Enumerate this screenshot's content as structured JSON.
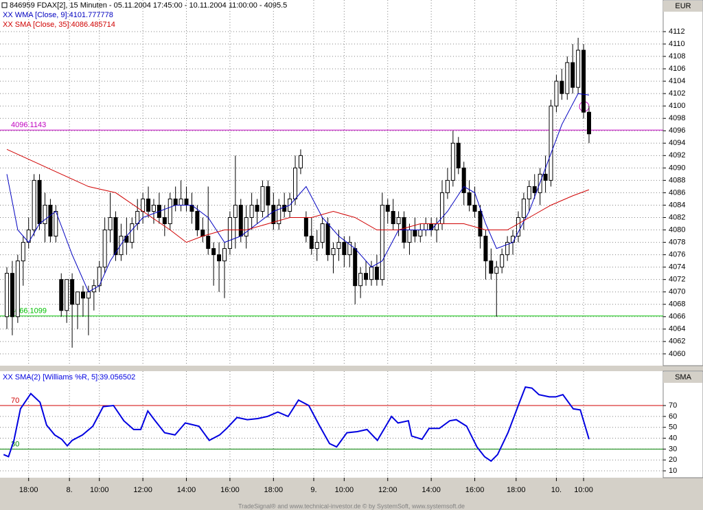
{
  "chart_data": [
    {
      "type": "candlestick",
      "title": "846959  FDAX[2], 15 Minuten - 05.11.2004 17:45:00 - 10.11.2004 11:00:00 - 4095.5",
      "ylabel": "EUR",
      "open": [
        4066,
        4073,
        4066,
        4075,
        4078,
        4080,
        4088,
        4081,
        4084,
        4079,
        4072,
        4067,
        4072,
        4068,
        4070,
        4069,
        4070,
        4071,
        4074,
        4080,
        4082,
        4076,
        4079,
        4078,
        4081,
        4083,
        4085,
        4083,
        4084,
        4082,
        4081,
        4085,
        4084,
        4085,
        4084,
        4083,
        4080,
        4079,
        4077,
        4076,
        4075,
        4077,
        4082,
        4084,
        4079,
        4082,
        4084,
        4083,
        4087,
        4084,
        4081,
        4084,
        4083,
        4085,
        4090,
        4082,
        4079,
        4077,
        4078,
        4081,
        4076,
        4077,
        4078,
        4076,
        4077,
        4071,
        4073,
        4072,
        4074,
        4072,
        4084,
        4083,
        4081,
        4082,
        4078,
        4080,
        4079,
        4080,
        4081,
        4080,
        4081,
        4086,
        4088,
        4094,
        4090,
        4086,
        4084,
        4083,
        4079,
        4075,
        4073,
        4074,
        4076,
        4078,
        4079,
        4082,
        4085,
        4087,
        4086,
        4089,
        4088,
        4100,
        4104,
        4102,
        4107,
        4103,
        4109,
        4099
      ],
      "high": [
        4074,
        4075,
        4076,
        4079,
        4082,
        4089,
        4089,
        4086,
        4085,
        4084,
        4073,
        4072,
        4073,
        4070,
        4071,
        4071,
        4072,
        4075,
        4082,
        4086,
        4083,
        4081,
        4082,
        4082,
        4085,
        4086,
        4087,
        4085,
        4086,
        4084,
        4086,
        4087,
        4088,
        4087,
        4086,
        4084,
        4082,
        4087,
        4078,
        4078,
        4078,
        4083,
        4092,
        4085,
        4084,
        4086,
        4085,
        4088,
        4088,
        4086,
        4085,
        4086,
        4086,
        4092,
        4093,
        4083,
        4082,
        4080,
        4082,
        4082,
        4078,
        4080,
        4079,
        4079,
        4078,
        4074,
        4075,
        4075,
        4076,
        4086,
        4085,
        4085,
        4083,
        4083,
        4081,
        4082,
        4081,
        4082,
        4082,
        4082,
        4088,
        4090,
        4096,
        4095,
        4091,
        4088,
        4087,
        4084,
        4080,
        4077,
        4075,
        4077,
        4079,
        4080,
        4083,
        4086,
        4088,
        4089,
        4090,
        4092,
        4101,
        4105,
        4106,
        4108,
        4110,
        4111,
        4110,
        4100
      ],
      "low": [
        4064,
        4063,
        4065,
        4071,
        4077,
        4079,
        4080,
        4078,
        4078,
        4078,
        4066,
        4065,
        4061,
        4064,
        4066,
        4063,
        4067,
        4070,
        4073,
        4078,
        4075,
        4075,
        4076,
        4077,
        4080,
        4081,
        4082,
        4081,
        4081,
        4079,
        4080,
        4083,
        4083,
        4083,
        4081,
        4079,
        4078,
        4076,
        4071,
        4070,
        4069,
        4076,
        4077,
        4078,
        4077,
        4080,
        4081,
        4082,
        4082,
        4080,
        4080,
        4082,
        4082,
        4084,
        4089,
        4078,
        4076,
        4075,
        4077,
        4075,
        4073,
        4075,
        4074,
        4074,
        4068,
        4069,
        4071,
        4071,
        4071,
        4071,
        4081,
        4080,
        4079,
        4077,
        4076,
        4078,
        4078,
        4079,
        4079,
        4078,
        4080,
        4085,
        4087,
        4089,
        4084,
        4083,
        4082,
        4077,
        4072,
        4072,
        4066,
        4073,
        4075,
        4076,
        4078,
        4080,
        4083,
        4085,
        4084,
        4086,
        4087,
        4099,
        4101,
        4101,
        4102,
        4102,
        4098,
        4094
      ],
      "close": [
        4073,
        4066,
        4075,
        4078,
        4080,
        4088,
        4081,
        4084,
        4079,
        4083,
        4067,
        4072,
        4068,
        4070,
        4069,
        4070,
        4071,
        4074,
        4080,
        4082,
        4076,
        4079,
        4078,
        4081,
        4083,
        4085,
        4083,
        4084,
        4082,
        4081,
        4085,
        4084,
        4085,
        4084,
        4083,
        4080,
        4079,
        4077,
        4076,
        4075,
        4077,
        4082,
        4084,
        4079,
        4082,
        4084,
        4083,
        4087,
        4084,
        4081,
        4084,
        4083,
        4085,
        4090,
        4092,
        4079,
        4077,
        4078,
        4081,
        4076,
        4077,
        4078,
        4076,
        4078,
        4071,
        4073,
        4072,
        4074,
        4072,
        4084,
        4083,
        4081,
        4082,
        4078,
        4080,
        4079,
        4080,
        4081,
        4080,
        4081,
        4086,
        4088,
        4094,
        4090,
        4086,
        4084,
        4083,
        4079,
        4075,
        4073,
        4074,
        4076,
        4078,
        4079,
        4082,
        4085,
        4087,
        4086,
        4089,
        4088,
        4100,
        4104,
        4102,
        4107,
        4103,
        4109,
        4099,
        4095.5
      ],
      "series": [
        {
          "name": "XX WMA [Close, 9]:4101.777778",
          "color": "#0000c0",
          "x": [
            0,
            2,
            4,
            6,
            9,
            12,
            15,
            17,
            19,
            22,
            25,
            28,
            31,
            34,
            37,
            40,
            43,
            46,
            49,
            52,
            55,
            58,
            61,
            64,
            67,
            69,
            72,
            75,
            78,
            81,
            84,
            86,
            88,
            90,
            93,
            96,
            99,
            102,
            105,
            107
          ],
          "values": [
            4089,
            4080,
            4078,
            4081,
            4083,
            4076,
            4070,
            4071,
            4075,
            4079,
            4082,
            4083,
            4084,
            4084,
            4082,
            4078,
            4079,
            4081,
            4083,
            4084,
            4087,
            4082,
            4079,
            4077,
            4074,
            4075,
            4080,
            4080,
            4080,
            4083,
            4087,
            4086,
            4081,
            4077,
            4078,
            4083,
            4090,
            4097,
            4102,
            4101.777778
          ]
        },
        {
          "name": "XX SMA [Close, 35]:4086.485714",
          "color": "#d00000",
          "x": [
            0,
            5,
            10,
            15,
            20,
            25,
            30,
            33,
            36,
            40,
            44,
            48,
            52,
            56,
            60,
            64,
            68,
            72,
            76,
            80,
            84,
            88,
            92,
            96,
            100,
            104,
            107
          ],
          "values": [
            4093,
            4091,
            4089,
            4087,
            4086,
            4083,
            4080,
            4078,
            4079,
            4080,
            4080,
            4081,
            4082,
            4082,
            4083,
            4082,
            4080,
            4080,
            4081,
            4081,
            4081,
            4080,
            4080,
            4082,
            4084,
            4085.5,
            4086.485714
          ]
        }
      ],
      "hlines": [
        {
          "value": 4096.1143,
          "color": "#c000c0"
        },
        {
          "value": 4066.1099,
          "color": "#00c000"
        }
      ],
      "ylim": [
        4058.1,
        4117.1
      ],
      "yticks": [
        4060,
        4062,
        4064,
        4066,
        4068,
        4070,
        4072,
        4074,
        4076,
        4078,
        4080,
        4082,
        4084,
        4086,
        4088,
        4090,
        4092,
        4094,
        4096,
        4098,
        4100,
        4102,
        4104,
        4106,
        4108,
        4110,
        4112
      ],
      "candle_up_color": "#ffffff",
      "candle_down_color": "#000000",
      "grid": true
    },
    {
      "type": "line",
      "ylabel": "SMA",
      "series": [
        {
          "name": "XX SMA(2) [Williams %R, 5]:39.056502",
          "color": "#0000e0",
          "x": [
            -0.6,
            0.3,
            1.3,
            2.5,
            4.4,
            6.1,
            7.3,
            8.8,
            10.1,
            11.1,
            12,
            13.9,
            15.8,
            17.7,
            19.6,
            21.5,
            23.3,
            24.6,
            25.9,
            27.1,
            29,
            30.9,
            32.8,
            35.3,
            37.2,
            39.1,
            40.4,
            42.3,
            44.2,
            46.1,
            47.9,
            49.8,
            51.7,
            53.6,
            55.5,
            57.4,
            59.3,
            60.6,
            62.5,
            64.4,
            66.2,
            68.1,
            70.7,
            71.9,
            73.8,
            74.4,
            76.3,
            77.6,
            79.5,
            81.4,
            82.6,
            84.5,
            86.4,
            87.8,
            89,
            90.2,
            92.1,
            94,
            95.3,
            96.5,
            97.8,
            99.7,
            100.9,
            102.2,
            104.1,
            105.4,
            107
          ],
          "values": [
            25,
            23,
            38,
            67,
            81,
            73,
            52,
            43,
            39,
            33,
            38,
            43,
            51,
            69,
            70,
            56,
            48,
            48,
            65,
            57,
            45,
            43,
            54,
            51,
            38,
            43,
            49,
            59,
            57,
            58,
            60,
            64,
            60,
            75,
            70,
            52,
            35,
            32,
            45,
            46,
            48,
            38,
            60,
            54,
            56,
            42,
            39,
            49,
            49,
            56,
            57,
            51,
            32,
            23,
            19,
            25,
            45,
            70,
            87,
            86,
            80,
            78,
            78,
            80,
            67,
            66,
            39.056502
          ]
        }
      ],
      "hlines": [
        {
          "value": 70,
          "color": "#d00000"
        },
        {
          "value": 30,
          "color": "#008000"
        }
      ],
      "ylim": [
        3.7,
        101.6
      ],
      "yticks": [
        10,
        20,
        30,
        40,
        50,
        60,
        70
      ],
      "xticks": [
        {
          "value": 4,
          "label": "18:00"
        },
        {
          "value": 11.5,
          "label": "8."
        },
        {
          "value": 17,
          "label": "10:00"
        },
        {
          "value": 25,
          "label": "12:00"
        },
        {
          "value": 33,
          "label": "14:00"
        },
        {
          "value": 41,
          "label": "16:00"
        },
        {
          "value": 49,
          "label": "18:00"
        },
        {
          "value": 56.4,
          "label": "9."
        },
        {
          "value": 62,
          "label": "10:00"
        },
        {
          "value": 70,
          "label": "12:00"
        },
        {
          "value": 78,
          "label": "14:00"
        },
        {
          "value": 86,
          "label": "16:00"
        },
        {
          "value": 93.6,
          "label": "18:00"
        },
        {
          "value": 101,
          "label": "10."
        },
        {
          "value": 106,
          "label": "10:00"
        }
      ],
      "grid": true
    }
  ],
  "footer": "TradeSignal® and www.technical-investor.de © by SystemSoft, www.systemsoft.de"
}
